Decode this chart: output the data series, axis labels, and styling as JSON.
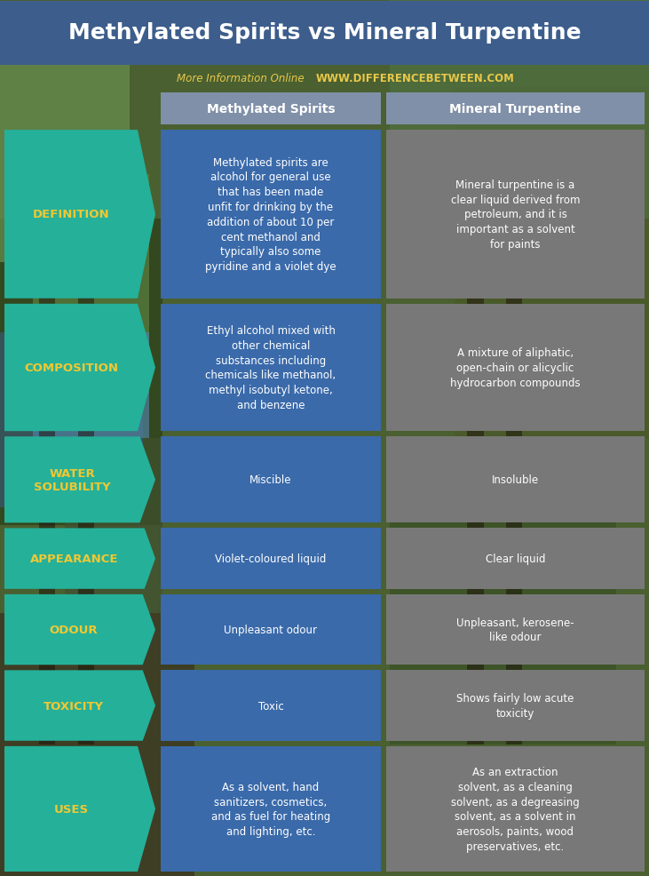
{
  "title": "Methylated Spirits vs Mineral Turpentine",
  "subtitle_plain": "More Information Online",
  "subtitle_url": "WWW.DIFFERENCEBETWEEN.COM",
  "col1_header": "Methylated Spirits",
  "col2_header": "Mineral Turpentine",
  "rows": [
    {
      "label": "DEFINITION",
      "col1": "Methylated spirits are\nalcohol for general use\nthat has been made\nunfit for drinking by the\naddition of about 10 per\ncent methanol and\ntypically also some\npyridine and a violet dye",
      "col2": "Mineral turpentine is a\nclear liquid derived from\npetroleum, and it is\nimportant as a solvent\nfor paints"
    },
    {
      "label": "COMPOSITION",
      "col1": "Ethyl alcohol mixed with\nother chemical\nsubstances including\nchemicals like methanol,\nmethyl isobutyl ketone,\nand benzene",
      "col2": "A mixture of aliphatic,\nopen-chain or alicyclic\nhydrocarbon compounds"
    },
    {
      "label": "WATER\nSOLUBILITY",
      "col1": "Miscible",
      "col2": "Insoluble"
    },
    {
      "label": "APPEARANCE",
      "col1": "Violet-coloured liquid",
      "col2": "Clear liquid"
    },
    {
      "label": "ODOUR",
      "col1": "Unpleasant odour",
      "col2": "Unpleasant, kerosene-\nlike odour"
    },
    {
      "label": "TOXICITY",
      "col1": "Toxic",
      "col2": "Shows fairly low acute\ntoxicity"
    },
    {
      "label": "USES",
      "col1": "As a solvent, hand\nsanitizers, cosmetics,\nand as fuel for heating\nand lighting, etc.",
      "col2": "As an extraction\nsolvent, as a cleaning\nsolvent, as a degreasing\nsolvent, as a solvent in\naerosols, paints, wood\npreservatives, etc."
    }
  ],
  "colors": {
    "title_bg": "#3d5e8c",
    "title_text": "#ffffff",
    "subtitle_plain_color": "#e8c84a",
    "subtitle_url_color": "#e8c84a",
    "header_bg": "#8090a8",
    "header_text": "#ffffff",
    "label_bg": "#25b09a",
    "label_text": "#f0c832",
    "col1_bg": "#3a6aaa",
    "col1_text": "#ffffff",
    "col2_bg": "#787878",
    "col2_text": "#ffffff"
  },
  "bg_colors": [
    "#4a6835",
    "#3d5c2a",
    "#526e3a",
    "#4a6030",
    "#405828",
    "#4e6632",
    "#446030",
    "#3d5c2a"
  ]
}
